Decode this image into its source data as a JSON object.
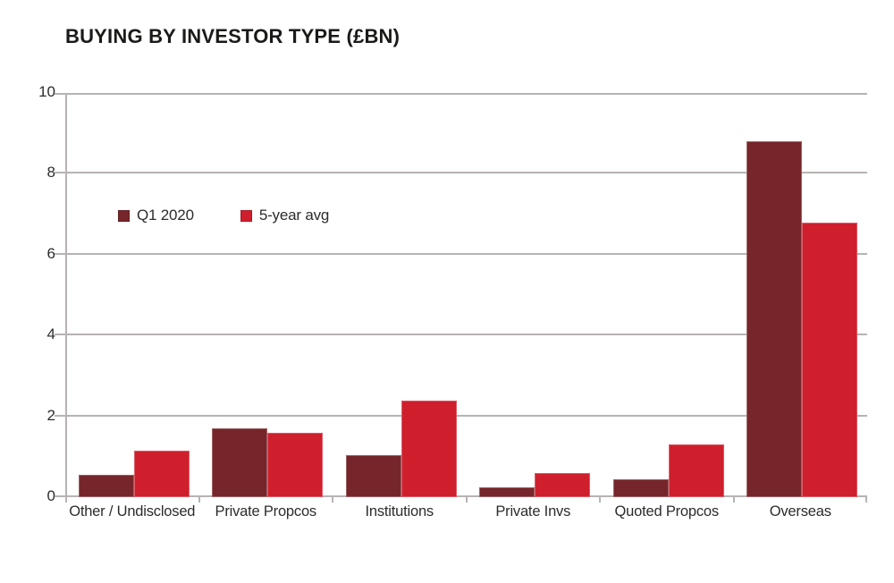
{
  "page": {
    "background": "#ffffff"
  },
  "chart_data": {
    "type": "bar",
    "title": "BUYING BY INVESTOR TYPE (£BN)",
    "categories": [
      "Other / Undisclosed",
      "Private Propcos",
      "Institutions",
      "Private Invs",
      "Quoted Propcos",
      "Overseas"
    ],
    "series": [
      {
        "name": "Q1 2020",
        "color": "#76262A",
        "values": [
          0.55,
          1.7,
          1.05,
          0.25,
          0.45,
          8.8
        ]
      },
      {
        "name": "5-year avg",
        "color": "#CF1F2D",
        "values": [
          1.15,
          1.6,
          2.4,
          0.6,
          1.3,
          6.8
        ]
      }
    ],
    "xlabel": "",
    "ylabel": "",
    "ylim": [
      0,
      10
    ],
    "yticks": [
      0,
      2,
      4,
      6,
      8,
      10
    ],
    "grid": "horizontal",
    "legend_position": "inside-upper-left",
    "axis_color": "#b7b3b3",
    "text_color": "#2d2c2b",
    "title_color": "#1b1a19"
  }
}
